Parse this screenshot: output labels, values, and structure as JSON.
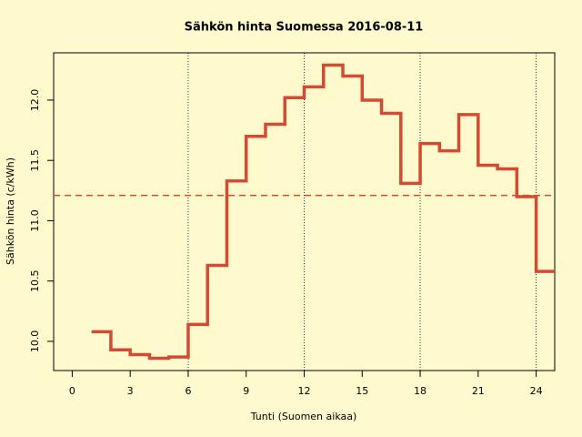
{
  "chart_data": {
    "type": "step",
    "title": "Sähkön hinta Suomessa 2016-08-11",
    "x_label": "Tunti (Suomen aikaa)",
    "y_label": "Sähkön hinta (c/kWh)",
    "x": [
      1,
      2,
      3,
      4,
      5,
      6,
      7,
      8,
      9,
      10,
      11,
      12,
      13,
      14,
      15,
      16,
      17,
      18,
      19,
      20,
      21,
      22,
      23,
      24
    ],
    "series": [
      {
        "color": "#d24b32",
        "values": [
          10.08,
          9.93,
          9.89,
          9.86,
          9.87,
          10.14,
          10.63,
          11.33,
          11.7,
          11.8,
          12.02,
          12.11,
          12.29,
          12.2,
          12.0,
          11.89,
          11.31,
          11.64,
          11.58,
          11.88,
          11.46,
          11.43,
          11.2,
          10.58
        ]
      }
    ],
    "reference_line": {
      "value": 11.21,
      "color": "#d24b32",
      "style": "dashed"
    },
    "vlines": [
      6,
      12,
      18,
      24
    ],
    "xlim": [
      -0.96,
      24.96
    ],
    "ylim": [
      9.758,
      12.392
    ],
    "xticks": [
      0,
      3,
      6,
      9,
      12,
      15,
      18,
      21,
      24
    ],
    "yticks": [
      {
        "value": 10,
        "label": "10.0"
      },
      10.5,
      {
        "value": 11,
        "label": "11.0"
      },
      11.5,
      {
        "value": 12,
        "label": "12.0"
      }
    ],
    "background": "#fffacd"
  }
}
